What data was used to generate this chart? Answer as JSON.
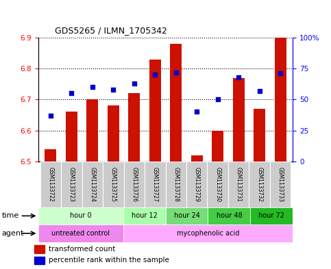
{
  "title": "GDS5265 / ILMN_1705342",
  "samples": [
    "GSM1133722",
    "GSM1133723",
    "GSM1133724",
    "GSM1133725",
    "GSM1133726",
    "GSM1133727",
    "GSM1133728",
    "GSM1133729",
    "GSM1133730",
    "GSM1133731",
    "GSM1133732",
    "GSM1133733"
  ],
  "transformed_count": [
    6.54,
    6.66,
    6.7,
    6.68,
    6.72,
    6.83,
    6.88,
    6.52,
    6.6,
    6.77,
    6.67,
    6.9
  ],
  "percentile_rank": [
    37,
    55,
    60,
    58,
    63,
    70,
    72,
    40,
    50,
    68,
    57,
    71
  ],
  "ylim_left": [
    6.5,
    6.9
  ],
  "ylim_right": [
    0,
    100
  ],
  "yticks_left": [
    6.5,
    6.6,
    6.7,
    6.8,
    6.9
  ],
  "yticks_right": [
    0,
    25,
    50,
    75,
    100
  ],
  "ytick_labels_right": [
    "0",
    "25",
    "50",
    "75",
    "100%"
  ],
  "bar_color": "#cc1100",
  "dot_color": "#0000cc",
  "bar_bottom": 6.5,
  "time_groups": [
    {
      "label": "hour 0",
      "start": 0,
      "end": 4,
      "color": "#ccffcc"
    },
    {
      "label": "hour 12",
      "start": 4,
      "end": 6,
      "color": "#aaffaa"
    },
    {
      "label": "hour 24",
      "start": 6,
      "end": 8,
      "color": "#77dd77"
    },
    {
      "label": "hour 48",
      "start": 8,
      "end": 10,
      "color": "#44cc44"
    },
    {
      "label": "hour 72",
      "start": 10,
      "end": 12,
      "color": "#22bb22"
    }
  ],
  "agent_groups": [
    {
      "label": "untreated control",
      "start": 0,
      "end": 4,
      "color": "#ee88ee"
    },
    {
      "label": "mycophenolic acid",
      "start": 4,
      "end": 12,
      "color": "#ffaaff"
    }
  ],
  "legend_bar_label": "transformed count",
  "legend_dot_label": "percentile rank within the sample",
  "xlabel_time": "time",
  "xlabel_agent": "agent",
  "bg_color": "#ffffff",
  "plot_bg": "#ffffff",
  "sample_bg": "#cccccc",
  "border_color": "#000000"
}
